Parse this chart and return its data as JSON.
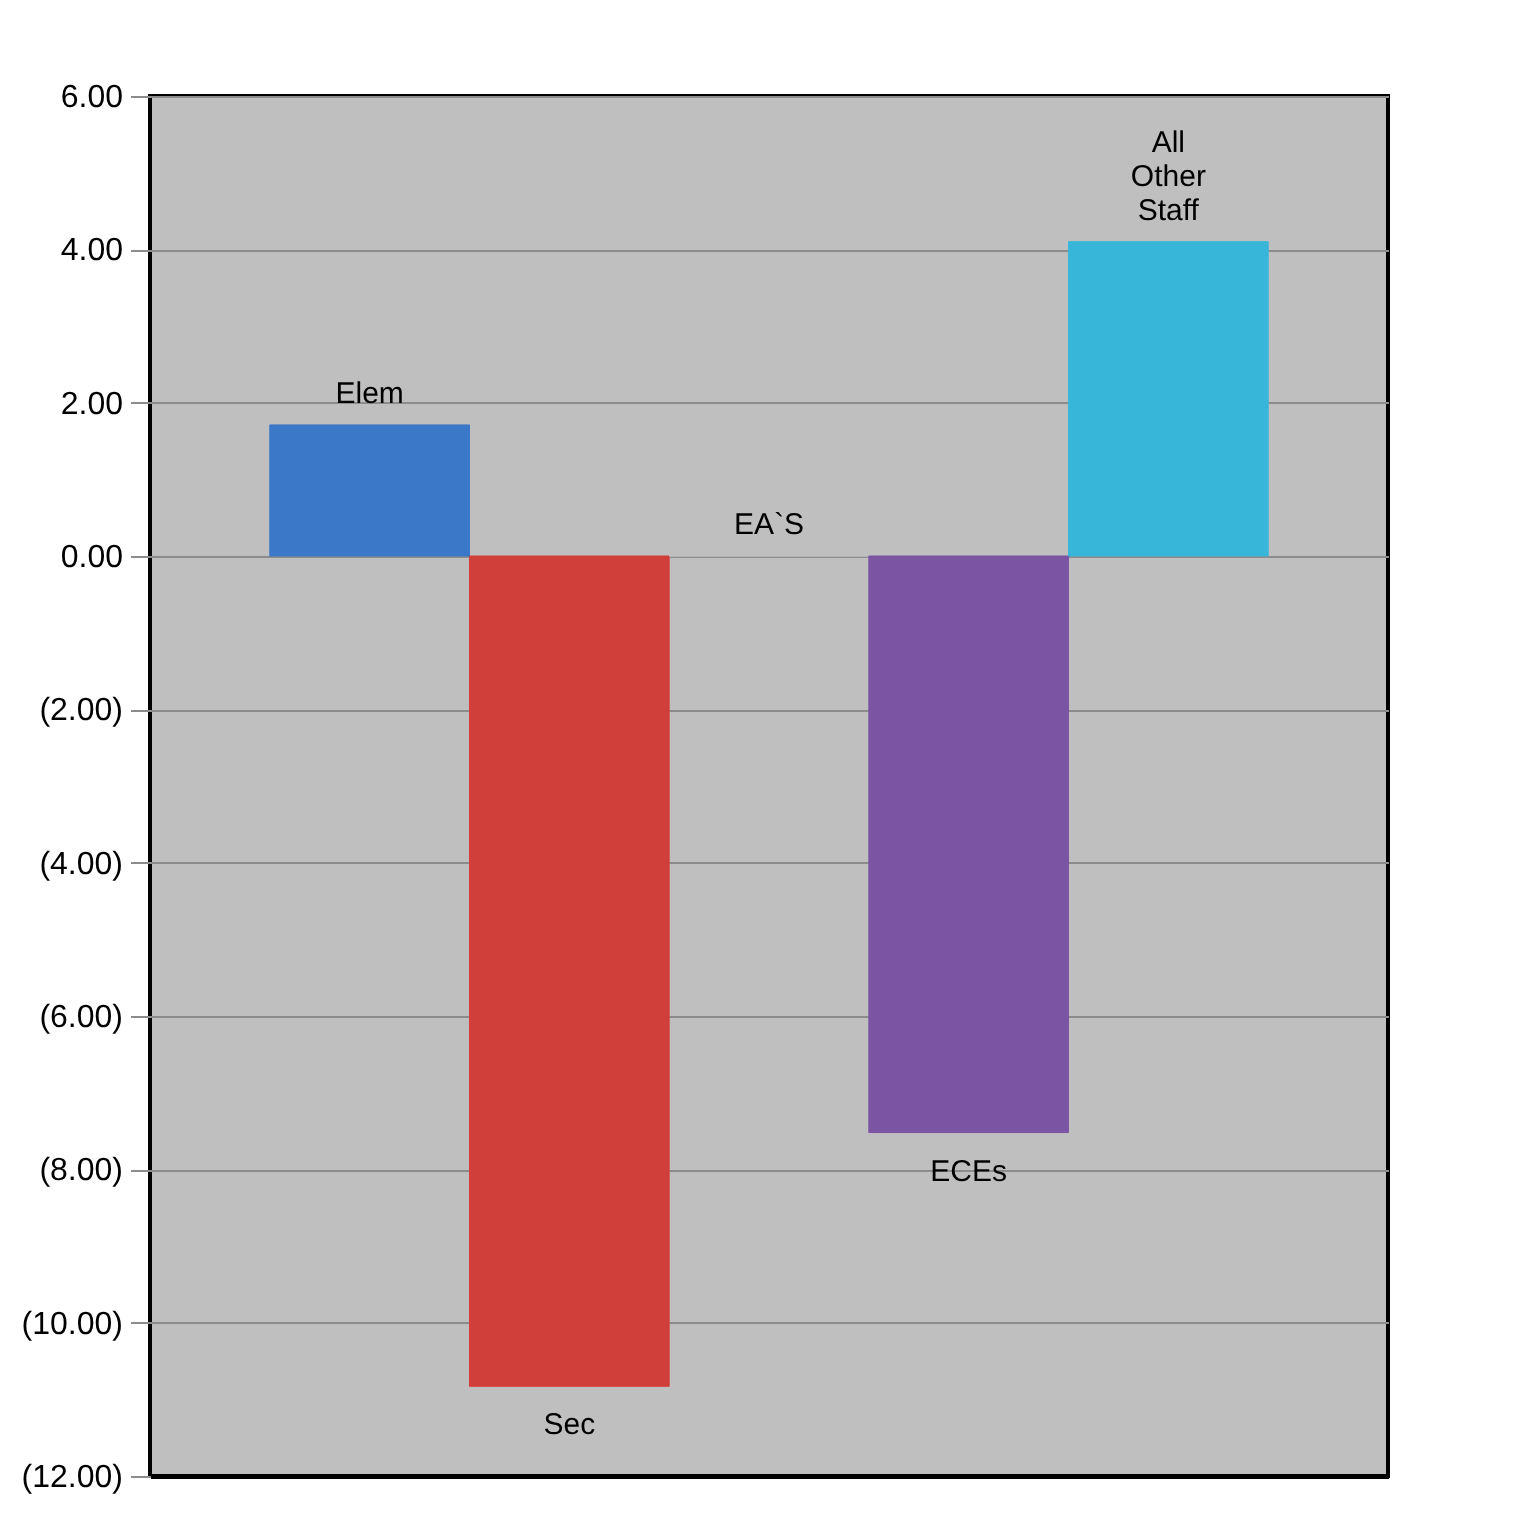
{
  "chart_data": {
    "type": "bar",
    "categories": [
      "Elem",
      "Sec",
      "EA`S",
      "ECEs",
      "All Other Staff"
    ],
    "values": [
      1.71,
      -10.83,
      0,
      -7.52,
      4.1
    ],
    "colors": [
      "#3c78c8",
      "#d13f3b",
      "#bfbfbf",
      "#7b55a3",
      "#38b6da"
    ],
    "ylim": [
      -12,
      6
    ],
    "yticks": [
      {
        "value": 6,
        "label": "6.00"
      },
      {
        "value": 4,
        "label": "4.00"
      },
      {
        "value": 2,
        "label": "2.00"
      },
      {
        "value": 0,
        "label": "0.00"
      },
      {
        "value": -2,
        "label": "(2.00)"
      },
      {
        "value": -4,
        "label": "(4.00)"
      },
      {
        "value": -6,
        "label": "(6.00)"
      },
      {
        "value": -8,
        "label": "(8.00)"
      },
      {
        "value": -10,
        "label": "(10.00)"
      },
      {
        "value": -12,
        "label": "(12.00)"
      }
    ],
    "grid": "y",
    "tick_labels": "y"
  }
}
